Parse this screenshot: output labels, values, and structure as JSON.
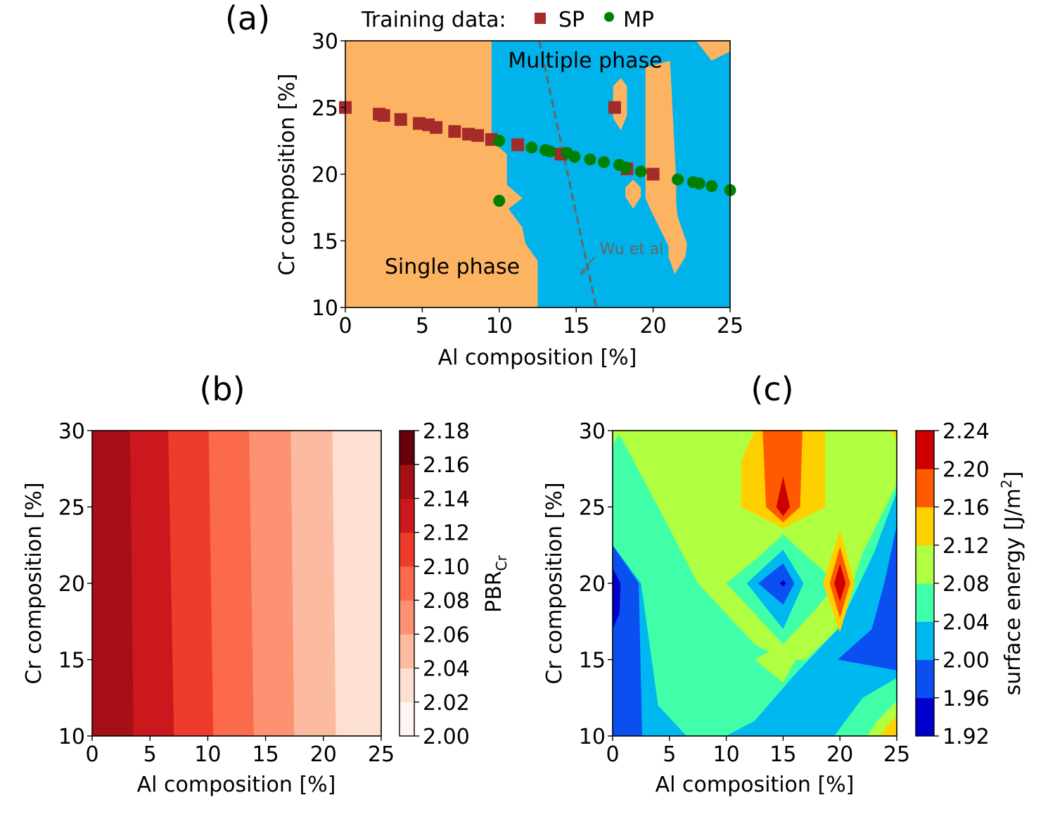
{
  "chart_data": [
    {
      "panel": "(a)",
      "type": "scatter",
      "xlabel": "Al composition [%]",
      "ylabel": "Cr composition [%]",
      "xlim": [
        0,
        25
      ],
      "ylim": [
        10,
        30
      ],
      "xticks": [
        "0",
        "5",
        "10",
        "15",
        "20",
        "25"
      ],
      "yticks": [
        "10",
        "15",
        "20",
        "25",
        "30"
      ],
      "legend_title": "Training data:",
      "legend_placement": "top",
      "region_labels": {
        "single": "Single phase",
        "multiple": "Multiple phase"
      },
      "region_colors": {
        "single": "#fdb462",
        "multiple": "#00b3ea"
      },
      "annotation": {
        "text": "Wu et al",
        "line_from": [
          12.6,
          30
        ],
        "line_to": [
          16.3,
          10
        ],
        "arrow_from": [
          16.2,
          13.8
        ],
        "arrow_to": [
          15.3,
          12.5
        ]
      },
      "series": [
        {
          "name": "SP",
          "marker": "square",
          "color": "#a52a2a",
          "points": [
            [
              0.0,
              25.0
            ],
            [
              2.2,
              24.5
            ],
            [
              2.5,
              24.4
            ],
            [
              3.6,
              24.1
            ],
            [
              4.8,
              23.8
            ],
            [
              5.4,
              23.7
            ],
            [
              5.9,
              23.5
            ],
            [
              7.1,
              23.2
            ],
            [
              8.0,
              23.0
            ],
            [
              8.6,
              22.9
            ],
            [
              9.5,
              22.6
            ],
            [
              11.2,
              22.2
            ],
            [
              14.0,
              21.5
            ],
            [
              17.5,
              25.0
            ],
            [
              18.3,
              20.4
            ],
            [
              20.0,
              20.0
            ]
          ]
        },
        {
          "name": "MP",
          "marker": "circle",
          "color": "#008000",
          "points": [
            [
              10.0,
              22.5
            ],
            [
              10.0,
              18.0
            ],
            [
              12.1,
              22.0
            ],
            [
              13.0,
              21.8
            ],
            [
              13.3,
              21.7
            ],
            [
              14.4,
              21.6
            ],
            [
              14.9,
              21.3
            ],
            [
              15.9,
              21.1
            ],
            [
              16.8,
              20.9
            ],
            [
              17.8,
              20.7
            ],
            [
              18.2,
              20.5
            ],
            [
              19.2,
              20.2
            ],
            [
              21.6,
              19.6
            ],
            [
              22.6,
              19.4
            ],
            [
              23.0,
              19.3
            ],
            [
              23.8,
              19.1
            ],
            [
              25.0,
              18.8
            ]
          ]
        }
      ]
    },
    {
      "panel": "(b)",
      "type": "heatmap",
      "xlabel": "Al composition [%]",
      "ylabel": "Cr composition [%]",
      "xlim": [
        0,
        25
      ],
      "ylim": [
        10,
        30
      ],
      "xticks": [
        "0",
        "5",
        "10",
        "15",
        "20",
        "25"
      ],
      "yticks": [
        "10",
        "15",
        "20",
        "25",
        "30"
      ],
      "colorbar_label": "PBR",
      "colorbar_label_sub": "Cr",
      "colorbar_ticks": [
        "2.00",
        "2.02",
        "2.04",
        "2.06",
        "2.08",
        "2.10",
        "2.12",
        "2.14",
        "2.16",
        "2.18"
      ],
      "colormap": [
        "#fff5f0",
        "#fee0d2",
        "#fcbba1",
        "#fc9272",
        "#fb6a4a",
        "#ef3b2c",
        "#cb181d",
        "#a50f15",
        "#67000d"
      ],
      "bands": [
        {
          "x_bottom": [
            0.0,
            3.6
          ],
          "x_top": [
            0.0,
            3.3
          ],
          "value": 2.15
        },
        {
          "x_bottom": [
            3.6,
            7.1
          ],
          "x_top": [
            3.3,
            6.6
          ],
          "value": 2.13
        },
        {
          "x_bottom": [
            7.1,
            10.5
          ],
          "x_top": [
            6.6,
            10.1
          ],
          "value": 2.11
        },
        {
          "x_bottom": [
            10.5,
            14.0
          ],
          "x_top": [
            10.1,
            13.6
          ],
          "value": 2.09
        },
        {
          "x_bottom": [
            14.0,
            17.5
          ],
          "x_top": [
            13.6,
            17.2
          ],
          "value": 2.07
        },
        {
          "x_bottom": [
            17.5,
            21.1
          ],
          "x_top": [
            17.2,
            20.8
          ],
          "value": 2.05
        },
        {
          "x_bottom": [
            21.1,
            25.0
          ],
          "x_top": [
            20.8,
            25.0
          ],
          "value": 2.03
        }
      ]
    },
    {
      "panel": "(c)",
      "type": "heatmap",
      "xlabel": "Al composition [%]",
      "ylabel": "Cr composition [%]",
      "xlim": [
        0,
        25
      ],
      "ylim": [
        10,
        30
      ],
      "xticks": [
        "0",
        "5",
        "10",
        "15",
        "20",
        "25"
      ],
      "yticks": [
        "10",
        "15",
        "20",
        "25",
        "30"
      ],
      "colorbar_label": "surface energy [J/m",
      "colorbar_label_sup": "2",
      "colorbar_label_end": "]",
      "colorbar_ticks": [
        "1.92",
        "1.96",
        "2.00",
        "2.04",
        "2.08",
        "2.12",
        "2.16",
        "2.20",
        "2.24"
      ],
      "colormap": [
        "#0000cd",
        "#0b4ff0",
        "#00b8f0",
        "#40ffa8",
        "#b0ff40",
        "#ffd000",
        "#ff5a00",
        "#cc0000"
      ],
      "background_level": 2.06,
      "regions": [
        {
          "level": 2.02,
          "points": [
            [
              0,
              22.5
            ],
            [
              2.5,
              20
            ],
            [
              4,
              12
            ],
            [
              6.5,
              10
            ],
            [
              0,
              10
            ]
          ]
        },
        {
          "level": 1.98,
          "points": [
            [
              0,
              22.5
            ],
            [
              2.3,
              20
            ],
            [
              2.6,
              10
            ],
            [
              0,
              10
            ]
          ]
        },
        {
          "level": 1.94,
          "points": [
            [
              0,
              21
            ],
            [
              0.7,
              20
            ],
            [
              0.6,
              18
            ],
            [
              0,
              17
            ]
          ]
        },
        {
          "level": 2.02,
          "points": [
            [
              9.8,
              30
            ],
            [
              10.5,
              28.8
            ],
            [
              11.2,
              30
            ]
          ]
        },
        {
          "level": 2.02,
          "points": [
            [
              25,
              26
            ],
            [
              23,
              22
            ],
            [
              19.8,
              17
            ],
            [
              16,
              14
            ],
            [
              12.5,
              11
            ],
            [
              10,
              10
            ],
            [
              25,
              10
            ]
          ]
        },
        {
          "level": 2.06,
          "points": [
            [
              25,
              13.8
            ],
            [
              22,
              12.5
            ],
            [
              19.5,
              10
            ],
            [
              25,
              10
            ]
          ]
        },
        {
          "level": 2.1,
          "points": [
            [
              25,
              12.3
            ],
            [
              23.3,
              11
            ],
            [
              22.4,
              10
            ],
            [
              25,
              10
            ]
          ]
        },
        {
          "level": 2.14,
          "points": [
            [
              25,
              11.3
            ],
            [
              24.2,
              10.7
            ],
            [
              23.5,
              10
            ],
            [
              25,
              10
            ]
          ]
        },
        {
          "level": 2.18,
          "points": [
            [
              25,
              10.8
            ],
            [
              24.6,
              10
            ]
          ]
        },
        {
          "level": 1.98,
          "points": [
            [
              25,
              23.8
            ],
            [
              23.9,
              20
            ],
            [
              22.8,
              17
            ],
            [
              19.8,
              15
            ],
            [
              25,
              14.3
            ]
          ]
        },
        {
          "level": 2.1,
          "points": [
            [
              0,
              30
            ],
            [
              25,
              30
            ],
            [
              25,
              26.5
            ],
            [
              22,
              22
            ],
            [
              19.8,
              17
            ],
            [
              17,
              15
            ],
            [
              15,
              15
            ],
            [
              12.5,
              16
            ],
            [
              10,
              18
            ],
            [
              7.5,
              20
            ],
            [
              4,
              25
            ],
            [
              0.7,
              29.6
            ]
          ]
        },
        {
          "level": 2.06,
          "points": [
            [
              10,
              20
            ],
            [
              12.5,
              21.5
            ],
            [
              15,
              23.2
            ],
            [
              17.5,
              21.5
            ],
            [
              19.8,
              20
            ],
            [
              17.5,
              18
            ],
            [
              15,
              16
            ],
            [
              12.5,
              18
            ]
          ]
        },
        {
          "level": 2.1,
          "points": [
            [
              12.5,
              15
            ],
            [
              15,
              16
            ],
            [
              16.1,
              15
            ],
            [
              15,
              13.5
            ]
          ]
        },
        {
          "level": 2.02,
          "points": [
            [
              11.8,
              20
            ],
            [
              15,
              22.2
            ],
            [
              16.8,
              20
            ],
            [
              15,
              17
            ]
          ]
        },
        {
          "level": 1.98,
          "points": [
            [
              12.8,
              20
            ],
            [
              15,
              21.3
            ],
            [
              16,
              20
            ],
            [
              15,
              18.6
            ]
          ]
        },
        {
          "level": 1.94,
          "points": [
            [
              14.7,
              20
            ],
            [
              15,
              20.2
            ],
            [
              15.3,
              20
            ],
            [
              15,
              19.8
            ]
          ]
        },
        {
          "level": 2.14,
          "points": [
            [
              12.5,
              30
            ],
            [
              18.7,
              30
            ],
            [
              18.7,
              25
            ],
            [
              15,
              23.6
            ],
            [
              11.3,
              25
            ],
            [
              11.3,
              28
            ]
          ]
        },
        {
          "level": 2.18,
          "points": [
            [
              13.2,
              30
            ],
            [
              16.7,
              30
            ],
            [
              16.5,
              25
            ],
            [
              15,
              24
            ],
            [
              13.5,
              25
            ]
          ]
        },
        {
          "level": 2.22,
          "points": [
            [
              15,
              27
            ],
            [
              15.6,
              25
            ],
            [
              15,
              24.4
            ],
            [
              14.4,
              25
            ]
          ]
        },
        {
          "level": 2.14,
          "points": [
            [
              20,
              23.5
            ],
            [
              21.3,
              20
            ],
            [
              20,
              16.8
            ],
            [
              18.5,
              20
            ]
          ]
        },
        {
          "level": 2.18,
          "points": [
            [
              20,
              22.4
            ],
            [
              20.9,
              20
            ],
            [
              20,
              17.7
            ],
            [
              19.1,
              20
            ]
          ]
        },
        {
          "level": 2.22,
          "points": [
            [
              20,
              21.3
            ],
            [
              20.5,
              20
            ],
            [
              20,
              18.8
            ],
            [
              19.5,
              20
            ]
          ]
        },
        {
          "level": 2.1,
          "points": [
            [
              0,
              29
            ],
            [
              0.7,
              30
            ],
            [
              0,
              30
            ]
          ]
        },
        {
          "level": 2.14,
          "points": [
            [
              24.5,
              30
            ],
            [
              25,
              30
            ],
            [
              25,
              29.3
            ]
          ]
        }
      ]
    }
  ],
  "titles": {
    "a": "(a)",
    "b": "(b)",
    "c": "(c)"
  }
}
